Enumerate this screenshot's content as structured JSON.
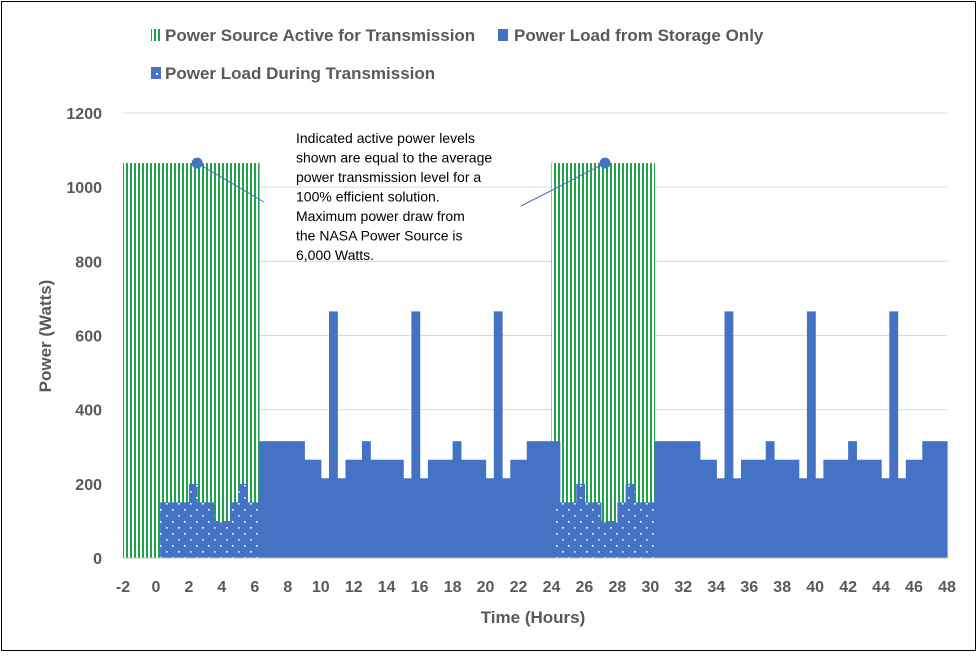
{
  "chart_data": {
    "type": "bar",
    "xlabel": "Time (Hours)",
    "ylabel": "Power (Watts)",
    "xlim": [
      -2,
      48
    ],
    "ylim": [
      0,
      1200
    ],
    "x_ticks": [
      "-2",
      "0",
      "2",
      "4",
      "6",
      "8",
      "10",
      "12",
      "14",
      "16",
      "18",
      "20",
      "22",
      "24",
      "26",
      "28",
      "30",
      "32",
      "34",
      "36",
      "38",
      "40",
      "42",
      "44",
      "46",
      "48"
    ],
    "y_ticks": [
      "0",
      "200",
      "400",
      "600",
      "800",
      "1000",
      "1200"
    ],
    "grid": "horizontal",
    "legend_placement": "top",
    "colors": {
      "green": "#1fa34a",
      "blue": "#4472c4",
      "grid": "#d9d9d9",
      "text": "#595959"
    },
    "series": [
      {
        "name": "Power Source Active for Transmission",
        "style": "vertical-stripes",
        "segments": [
          {
            "start": -2,
            "end": 6.25,
            "value": 1065
          },
          {
            "start": 24,
            "end": 30.25,
            "value": 1065
          }
        ]
      },
      {
        "name": "Power Load from Storage Only",
        "style": "solid",
        "segments": [
          {
            "start": 6.25,
            "end": 7,
            "value": 315
          },
          {
            "start": 7,
            "end": 8,
            "value": 315
          },
          {
            "start": 8,
            "end": 9,
            "value": 315
          },
          {
            "start": 9,
            "end": 10,
            "value": 265
          },
          {
            "start": 10,
            "end": 10.5,
            "value": 215
          },
          {
            "start": 10.5,
            "end": 11,
            "value": 665
          },
          {
            "start": 11,
            "end": 11.5,
            "value": 215
          },
          {
            "start": 11.5,
            "end": 12.5,
            "value": 265
          },
          {
            "start": 12.5,
            "end": 13,
            "value": 315
          },
          {
            "start": 13,
            "end": 15,
            "value": 265
          },
          {
            "start": 15,
            "end": 15.5,
            "value": 215
          },
          {
            "start": 15.5,
            "end": 16,
            "value": 665
          },
          {
            "start": 16,
            "end": 16.5,
            "value": 215
          },
          {
            "start": 16.5,
            "end": 18,
            "value": 265
          },
          {
            "start": 18,
            "end": 18.5,
            "value": 315
          },
          {
            "start": 18.5,
            "end": 20,
            "value": 265
          },
          {
            "start": 20,
            "end": 20.5,
            "value": 215
          },
          {
            "start": 20.5,
            "end": 21,
            "value": 665
          },
          {
            "start": 21,
            "end": 21.5,
            "value": 215
          },
          {
            "start": 21.5,
            "end": 22.5,
            "value": 265
          },
          {
            "start": 22.5,
            "end": 24.5,
            "value": 315
          },
          {
            "start": 30.25,
            "end": 31,
            "value": 315
          },
          {
            "start": 31,
            "end": 33,
            "value": 315
          },
          {
            "start": 33,
            "end": 34,
            "value": 265
          },
          {
            "start": 34,
            "end": 34.5,
            "value": 215
          },
          {
            "start": 34.5,
            "end": 35,
            "value": 665
          },
          {
            "start": 35,
            "end": 35.5,
            "value": 215
          },
          {
            "start": 35.5,
            "end": 37,
            "value": 265
          },
          {
            "start": 37,
            "end": 37.5,
            "value": 315
          },
          {
            "start": 37.5,
            "end": 39,
            "value": 265
          },
          {
            "start": 39,
            "end": 39.5,
            "value": 215
          },
          {
            "start": 39.5,
            "end": 40,
            "value": 665
          },
          {
            "start": 40,
            "end": 40.5,
            "value": 215
          },
          {
            "start": 40.5,
            "end": 42,
            "value": 265
          },
          {
            "start": 42,
            "end": 42.5,
            "value": 315
          },
          {
            "start": 42.5,
            "end": 44,
            "value": 265
          },
          {
            "start": 44,
            "end": 44.5,
            "value": 215
          },
          {
            "start": 44.5,
            "end": 45,
            "value": 665
          },
          {
            "start": 45,
            "end": 45.5,
            "value": 215
          },
          {
            "start": 45.5,
            "end": 46.5,
            "value": 265
          },
          {
            "start": 46.5,
            "end": 48,
            "value": 315
          }
        ]
      },
      {
        "name": "Power Load During Transmission",
        "style": "dotted",
        "segments": [
          {
            "start": 0.25,
            "end": 2,
            "value": 150
          },
          {
            "start": 2,
            "end": 2.5,
            "value": 200
          },
          {
            "start": 2.5,
            "end": 3.5,
            "value": 150
          },
          {
            "start": 3.5,
            "end": 4.5,
            "value": 100
          },
          {
            "start": 4.5,
            "end": 5,
            "value": 150
          },
          {
            "start": 5,
            "end": 5.5,
            "value": 200
          },
          {
            "start": 5.5,
            "end": 6.25,
            "value": 150
          },
          {
            "start": 24,
            "end": 25.5,
            "value": 150
          },
          {
            "start": 25.5,
            "end": 26,
            "value": 200
          },
          {
            "start": 26,
            "end": 27,
            "value": 150
          },
          {
            "start": 27,
            "end": 28,
            "value": 100
          },
          {
            "start": 28,
            "end": 28.5,
            "value": 150
          },
          {
            "start": 28.5,
            "end": 29,
            "value": 200
          },
          {
            "start": 29,
            "end": 30.25,
            "value": 150
          }
        ]
      }
    ],
    "annotation": {
      "lines": [
        "Indicated active power levels",
        "shown are equal to the average",
        "power transmission level for a",
        "100% efficient solution.",
        "Maximum power draw from",
        "the NASA Power Source is",
        "6,000 Watts."
      ],
      "pointers": [
        {
          "x": 2.5,
          "y": 1065
        },
        {
          "x": 27.25,
          "y": 1065
        }
      ]
    }
  }
}
